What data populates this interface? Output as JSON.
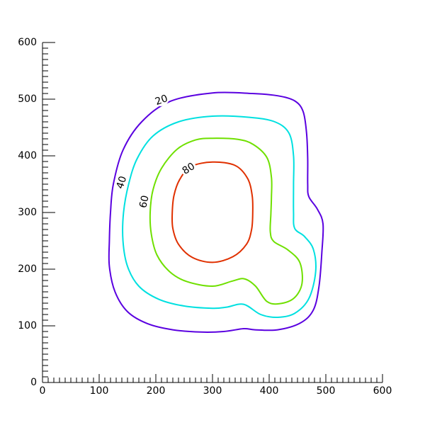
{
  "chart_data": {
    "type": "contour",
    "title": "",
    "xlabel": "",
    "ylabel": "",
    "xlim": [
      0,
      600
    ],
    "ylim": [
      0,
      600
    ],
    "x_major_ticks": [
      0,
      100,
      200,
      300,
      400,
      500,
      600
    ],
    "y_major_ticks": [
      0,
      100,
      200,
      300,
      400,
      500,
      600
    ],
    "x_minor_step": 10,
    "y_minor_step": 10,
    "grid": false,
    "legend": "none",
    "levels": [
      {
        "level": 20,
        "label": "20",
        "color": "#5a00e0",
        "points": [
          [
            300,
            511
          ],
          [
            370,
            510
          ],
          [
            415,
            506
          ],
          [
            445,
            497
          ],
          [
            460,
            478
          ],
          [
            466,
            440
          ],
          [
            468,
            395
          ],
          [
            468,
            350
          ],
          [
            470,
            328
          ],
          [
            485,
            306
          ],
          [
            495,
            280
          ],
          [
            493,
            230
          ],
          [
            488,
            170
          ],
          [
            478,
            128
          ],
          [
            455,
            105
          ],
          [
            415,
            93
          ],
          [
            375,
            93
          ],
          [
            355,
            95
          ],
          [
            320,
            90
          ],
          [
            280,
            89
          ],
          [
            230,
            93
          ],
          [
            185,
            104
          ],
          [
            150,
            125
          ],
          [
            128,
            160
          ],
          [
            118,
            205
          ],
          [
            118,
            250
          ],
          [
            120,
            300
          ],
          [
            125,
            350
          ],
          [
            142,
            410
          ],
          [
            175,
            460
          ],
          [
            225,
            496
          ],
          [
            300,
            511
          ]
        ]
      },
      {
        "level": 40,
        "label": "40",
        "color": "#00e0e0",
        "points": [
          [
            300,
            470
          ],
          [
            365,
            468
          ],
          [
            410,
            460
          ],
          [
            435,
            440
          ],
          [
            443,
            400
          ],
          [
            443,
            350
          ],
          [
            443,
            300
          ],
          [
            445,
            272
          ],
          [
            462,
            258
          ],
          [
            478,
            235
          ],
          [
            482,
            195
          ],
          [
            470,
            148
          ],
          [
            445,
            122
          ],
          [
            415,
            115
          ],
          [
            385,
            120
          ],
          [
            355,
            138
          ],
          [
            325,
            133
          ],
          [
            300,
            131
          ],
          [
            250,
            135
          ],
          [
            205,
            147
          ],
          [
            170,
            170
          ],
          [
            150,
            205
          ],
          [
            142,
            250
          ],
          [
            143,
            300
          ],
          [
            152,
            350
          ],
          [
            167,
            395
          ],
          [
            195,
            435
          ],
          [
            240,
            460
          ],
          [
            300,
            470
          ]
        ]
      },
      {
        "level": 60,
        "label": "60",
        "color": "#6fe000",
        "points": [
          [
            300,
            431
          ],
          [
            345,
            429
          ],
          [
            372,
            420
          ],
          [
            396,
            397
          ],
          [
            404,
            362
          ],
          [
            404,
            327
          ],
          [
            403,
            297
          ],
          [
            402,
            266
          ],
          [
            408,
            249
          ],
          [
            433,
            234
          ],
          [
            454,
            212
          ],
          [
            458,
            175
          ],
          [
            444,
            149
          ],
          [
            418,
            139
          ],
          [
            396,
            143
          ],
          [
            376,
            170
          ],
          [
            356,
            183
          ],
          [
            335,
            179
          ],
          [
            300,
            170
          ],
          [
            255,
            178
          ],
          [
            225,
            195
          ],
          [
            202,
            225
          ],
          [
            192,
            262
          ],
          [
            190,
            300
          ],
          [
            195,
            340
          ],
          [
            210,
            378
          ],
          [
            238,
            412
          ],
          [
            270,
            428
          ],
          [
            300,
            431
          ]
        ]
      },
      {
        "level": 80,
        "label": "80",
        "color": "#e03000",
        "points": [
          [
            300,
            389
          ],
          [
            340,
            383
          ],
          [
            362,
            360
          ],
          [
            370,
            330
          ],
          [
            371,
            300
          ],
          [
            369,
            270
          ],
          [
            360,
            244
          ],
          [
            336,
            222
          ],
          [
            300,
            212
          ],
          [
            264,
            221
          ],
          [
            240,
            244
          ],
          [
            230,
            272
          ],
          [
            229,
            300
          ],
          [
            232,
            330
          ],
          [
            242,
            358
          ],
          [
            262,
            381
          ],
          [
            300,
            389
          ]
        ]
      }
    ],
    "contour_labels": [
      {
        "text": "20",
        "x": 210,
        "y": 498,
        "angle": -20
      },
      {
        "text": "40",
        "x": 140,
        "y": 353,
        "angle": -72
      },
      {
        "text": "60",
        "x": 180,
        "y": 319,
        "angle": -78
      },
      {
        "text": "80",
        "x": 258,
        "y": 377,
        "angle": -32
      }
    ]
  }
}
